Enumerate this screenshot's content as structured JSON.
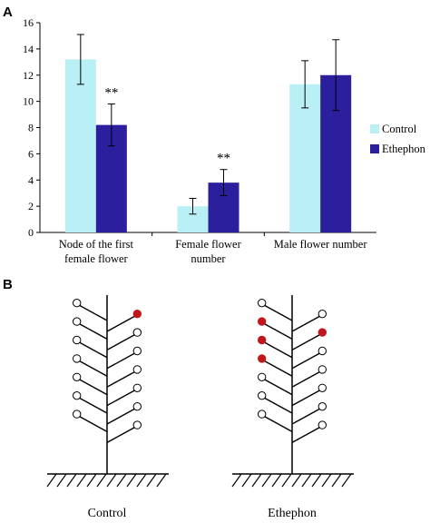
{
  "panels": {
    "a": "A",
    "b": "B"
  },
  "chart_data": {
    "type": "bar",
    "categories": [
      [
        "Node of the first",
        "female flower"
      ],
      [
        "Female flower",
        "number"
      ],
      [
        "Male flower   number"
      ]
    ],
    "series": [
      {
        "name": "Control",
        "color": "#b8f0f5",
        "values": [
          13.2,
          2.0,
          11.3
        ],
        "errors": [
          1.9,
          0.6,
          1.8
        ]
      },
      {
        "name": "Ethephon",
        "color": "#2b1f9e",
        "values": [
          8.2,
          3.8,
          12.0
        ],
        "errors": [
          1.6,
          1.0,
          2.7
        ]
      }
    ],
    "significance": [
      {
        "category": 0,
        "series": 1,
        "label": "**"
      },
      {
        "category": 1,
        "series": 1,
        "label": "**"
      }
    ],
    "ylim": [
      0,
      16
    ],
    "yticks": [
      0,
      2,
      4,
      6,
      8,
      10,
      12,
      14,
      16
    ],
    "legend_position": "right",
    "xlabel": "",
    "ylabel": "",
    "title": ""
  },
  "diagram": {
    "plants": [
      {
        "label": "Control",
        "red_left": [],
        "red_right": [
          0
        ]
      },
      {
        "label": "Ethephon",
        "red_left": [
          1,
          2,
          3
        ],
        "red_right": [
          1
        ]
      }
    ],
    "node_fill_default": "#ffffff",
    "node_fill_female": "#c0171d"
  }
}
